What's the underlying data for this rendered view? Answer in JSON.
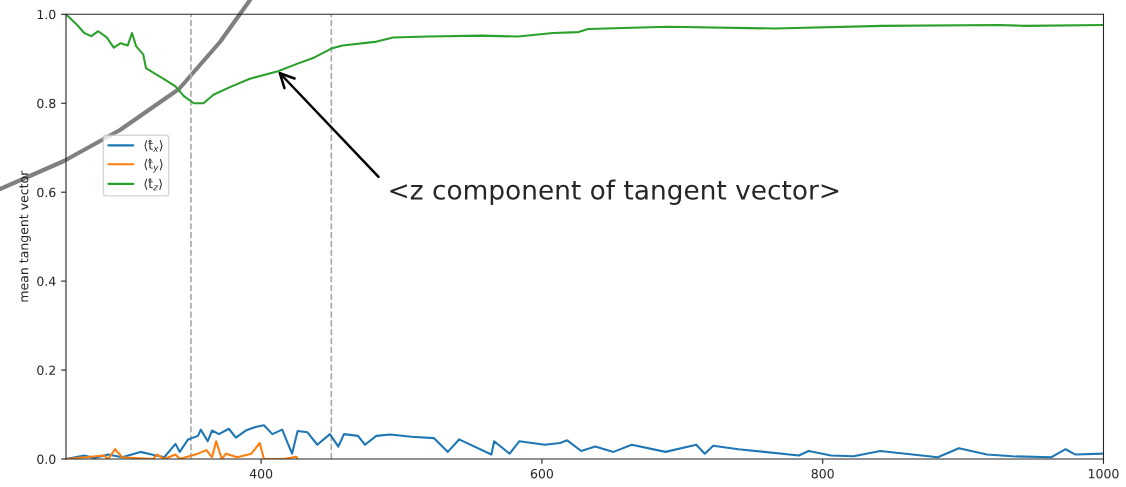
{
  "chart_data": {
    "type": "line",
    "ylabel": "mean tangent vector",
    "xlim": [
      261,
      1000
    ],
    "xticks": [
      400,
      600,
      800,
      1000
    ],
    "ylim": [
      0,
      1
    ],
    "yticks": [
      {
        "value": 0,
        "label": "0.0"
      },
      {
        "value": 0.2,
        "label": "0.2"
      },
      {
        "value": 0.4,
        "label": "0.4"
      },
      {
        "value": 0.6,
        "label": "0.6"
      },
      {
        "value": 0.8,
        "label": "0.8"
      },
      {
        "value": 1,
        "label": "1.0"
      }
    ],
    "grid": false,
    "legend": "left",
    "line_style": "solid",
    "marker": "none",
    "ref_lines": [
      {
        "axis": "x",
        "value": 350,
        "color": "#aaaaaa",
        "line_style": "dashed"
      },
      {
        "axis": "x",
        "value": 450,
        "color": "#aaaaaa",
        "line_style": "dashed"
      }
    ],
    "annotations": [
      {
        "text": "<z component of tangent vector>",
        "x": 412,
        "y": 0.872
      }
    ],
    "series": [
      {
        "name": "⟨t̂$_{x}$⟩",
        "color": "#1f77b4",
        "x": [
          261,
          274,
          281,
          291,
          301,
          314,
          322,
          331,
          339,
          342,
          348,
          355,
          357,
          362,
          365,
          370,
          377,
          382,
          389,
          396,
          402,
          408,
          415,
          422,
          426,
          433,
          440,
          449,
          455,
          459,
          469,
          474,
          482,
          492,
          507,
          523,
          533,
          541,
          564,
          566,
          577,
          584,
          602,
          613,
          618,
          628,
          638,
          651,
          664,
          688,
          710,
          716,
          722,
          740,
          783,
          790,
          806,
          822,
          841,
          882,
          897,
          917,
          935,
          963,
          973,
          980,
          1000
        ],
        "values": [
          0,
          0.008,
          0.002,
          0.01,
          0.004,
          0.016,
          0.01,
          0.004,
          0.034,
          0.016,
          0.044,
          0.052,
          0.066,
          0.04,
          0.064,
          0.056,
          0.068,
          0.048,
          0.064,
          0.072,
          0.076,
          0.056,
          0.066,
          0.012,
          0.063,
          0.06,
          0.032,
          0.056,
          0.028,
          0.056,
          0.052,
          0.032,
          0.052,
          0.055,
          0.05,
          0.047,
          0.016,
          0.044,
          0.01,
          0.04,
          0.012,
          0.04,
          0.032,
          0.036,
          0.042,
          0.018,
          0.028,
          0.016,
          0.032,
          0.016,
          0.032,
          0.012,
          0.03,
          0.022,
          0.008,
          0.018,
          0.008,
          0.006,
          0.018,
          0.004,
          0.024,
          0.01,
          0.006,
          0.004,
          0.022,
          0.01,
          0.012
        ]
      },
      {
        "name": "⟨t̂$_{y}$⟩",
        "color": "#ff7f0e",
        "x": [
          261,
          288,
          291,
          296,
          301,
          323,
          326,
          331,
          339,
          342,
          355,
          361,
          365,
          368,
          372,
          375,
          383,
          393,
          399,
          402,
          416,
          425,
          426
        ],
        "values": [
          0,
          0.008,
          0,
          0.022,
          0.004,
          0,
          0.01,
          0,
          0.01,
          0,
          0.012,
          0.02,
          0.004,
          0.04,
          0,
          0.012,
          0.004,
          0.012,
          0.036,
          0,
          0,
          0.005,
          0
        ]
      },
      {
        "name": "⟨t̂$_{z}$⟩",
        "color": "#2ca02c",
        "x": [
          261,
          269,
          274,
          279,
          284,
          290,
          295,
          300,
          305,
          308,
          311,
          316,
          318,
          324,
          330,
          339,
          345,
          352,
          359,
          366,
          379,
          392,
          412,
          425,
          438,
          450,
          458,
          481,
          494,
          519,
          557,
          583,
          608,
          626,
          633,
          690,
          766,
          842,
          926,
          944,
          1000
        ],
        "values": [
          1.0,
          0.976,
          0.958,
          0.951,
          0.962,
          0.948,
          0.925,
          0.935,
          0.93,
          0.958,
          0.928,
          0.91,
          0.879,
          0.867,
          0.856,
          0.838,
          0.816,
          0.8,
          0.8,
          0.819,
          0.838,
          0.855,
          0.872,
          0.888,
          0.903,
          0.923,
          0.93,
          0.938,
          0.948,
          0.95,
          0.952,
          0.95,
          0.958,
          0.96,
          0.967,
          0.972,
          0.968,
          0.974,
          0.976,
          0.974,
          0.976
        ]
      }
    ]
  }
}
